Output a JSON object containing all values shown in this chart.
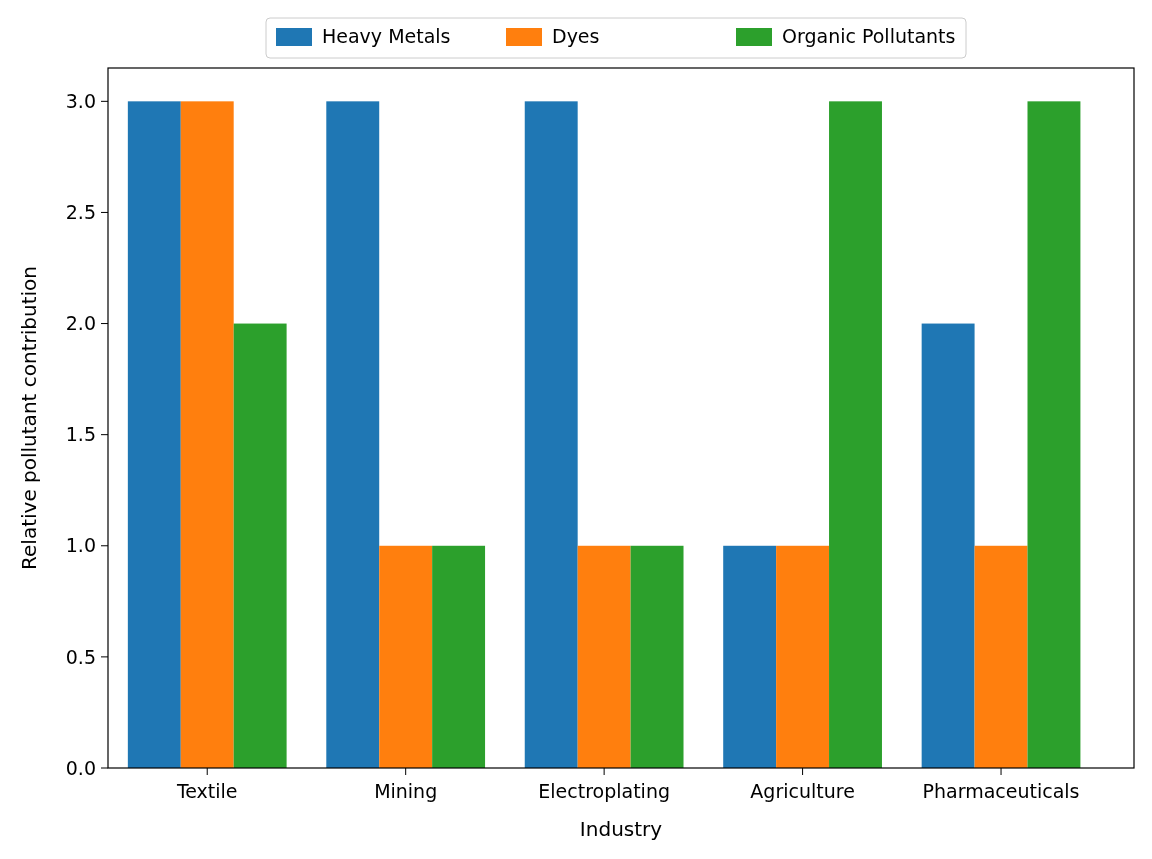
{
  "chart_data": {
    "type": "bar",
    "xlabel": "Industry",
    "ylabel": "Relative pollutant contribution",
    "categories": [
      "Textile",
      "Mining",
      "Electroplating",
      "Agriculture",
      "Pharmaceuticals"
    ],
    "series": [
      {
        "name": "Heavy Metals",
        "color": "#1f77b4",
        "values": [
          3,
          3,
          3,
          1,
          2
        ]
      },
      {
        "name": "Dyes",
        "color": "#ff7f0e",
        "values": [
          3,
          1,
          1,
          1,
          1
        ]
      },
      {
        "name": "Organic Pollutants",
        "color": "#2ca02c",
        "values": [
          2,
          1,
          1,
          3,
          3
        ]
      }
    ],
    "ylim": [
      0,
      3.15
    ],
    "yticks": [
      {
        "value": 0,
        "label": "0.0"
      },
      {
        "value": 0.5,
        "label": "0.5"
      },
      {
        "value": 1,
        "label": "1.0"
      },
      {
        "value": 1.5,
        "label": "1.5"
      },
      {
        "value": 2,
        "label": "2.0"
      },
      {
        "value": 2.5,
        "label": "2.5"
      },
      {
        "value": 3,
        "label": "3.0"
      }
    ],
    "legend": "top"
  }
}
